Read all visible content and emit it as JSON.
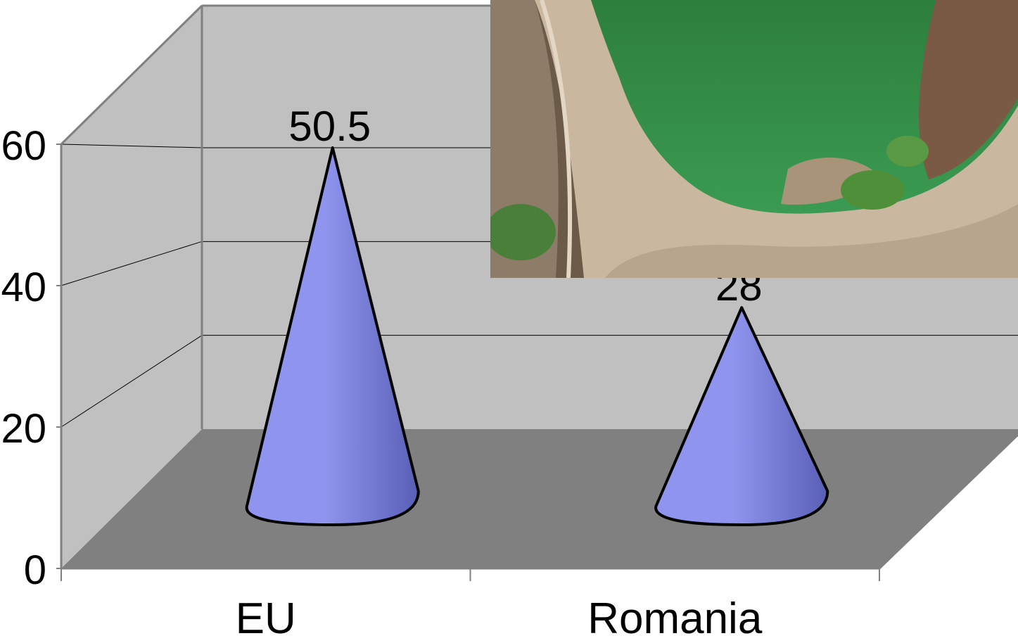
{
  "chart_data": {
    "type": "bar",
    "bar_shape": "cone",
    "style": "3d",
    "categories": [
      "EU",
      "Romania"
    ],
    "values": [
      50.5,
      28
    ],
    "data_labels": [
      "50.5",
      "28"
    ],
    "yticks": [
      "0",
      "20",
      "40",
      "60"
    ],
    "ylim": [
      0,
      60
    ],
    "grid": true,
    "legend": "none",
    "colors": {
      "cone": "#8f95ee",
      "cone_dark": "#5a5fb6",
      "back_wall": "#c0c0c0",
      "floor": "#808080",
      "axis": "#808080"
    }
  },
  "inset_photo": {
    "subject": "arch-dam-reservoir-photo",
    "colors": {
      "water": "#2f8a45",
      "dam": "#c9b7a0",
      "rock": "#7a5a45",
      "trees": "#4f8f3a"
    }
  }
}
